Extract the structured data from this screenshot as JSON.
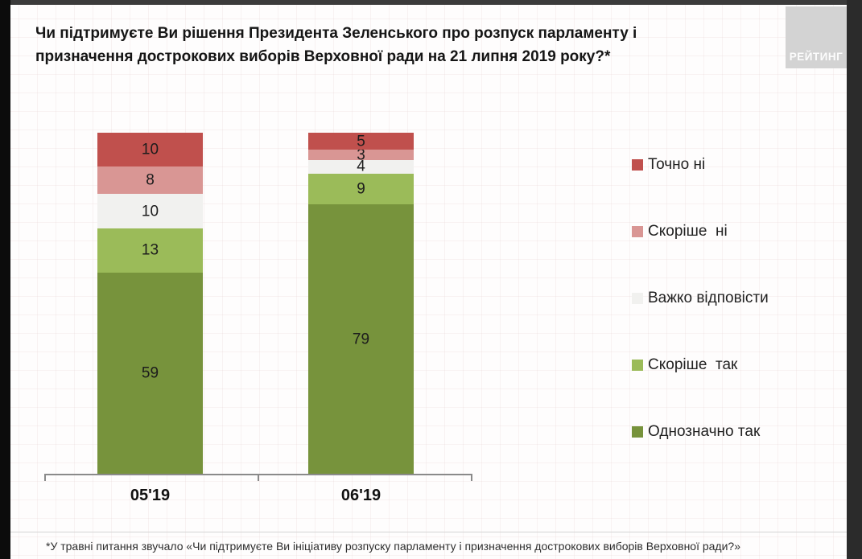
{
  "page": {
    "title_line1": "Чи підтримуєте Ви рішення Президента Зеленського про розпуск парламенту і",
    "title_line2": "призначення дострокових виборів Верховної ради на 21 липня 2019 року?*",
    "footnote": "*У травні питання звучало «Чи підтримуєте Ви ініціативу розпуску парламенту і призначення дострокових виборів Верховної ради?»",
    "logo_text": "РЕЙТИНГ"
  },
  "chart_data": {
    "type": "bar",
    "subtype": "stacked-vertical",
    "title": "Чи підтримуєте Ви рішення Президента Зеленського про розпуск парламенту і призначення дострокових виборів Верховної ради на 21 липня 2019 року?*",
    "categories": [
      "05'19",
      "06'19"
    ],
    "series": [
      {
        "name": "Однозначно так",
        "color": "#77933c",
        "values": [
          59,
          79
        ]
      },
      {
        "name": "Скоріше  так",
        "color": "#9bbb59",
        "values": [
          13,
          9
        ]
      },
      {
        "name": "Важко відповісти",
        "color": "#f1f1ef",
        "values": [
          10,
          4
        ]
      },
      {
        "name": "Скоріше  ні",
        "color": "#d99694",
        "values": [
          8,
          3
        ]
      },
      {
        "name": "Точно ні",
        "color": "#c0504d",
        "values": [
          10,
          5
        ]
      }
    ],
    "ylim": [
      0,
      100
    ],
    "grid": false,
    "legend_position": "right",
    "legend_order_top_to_bottom": [
      "Точно ні",
      "Скоріше  ні",
      "Важко відповісти",
      "Скоріше  так",
      "Однозначно так"
    ]
  }
}
